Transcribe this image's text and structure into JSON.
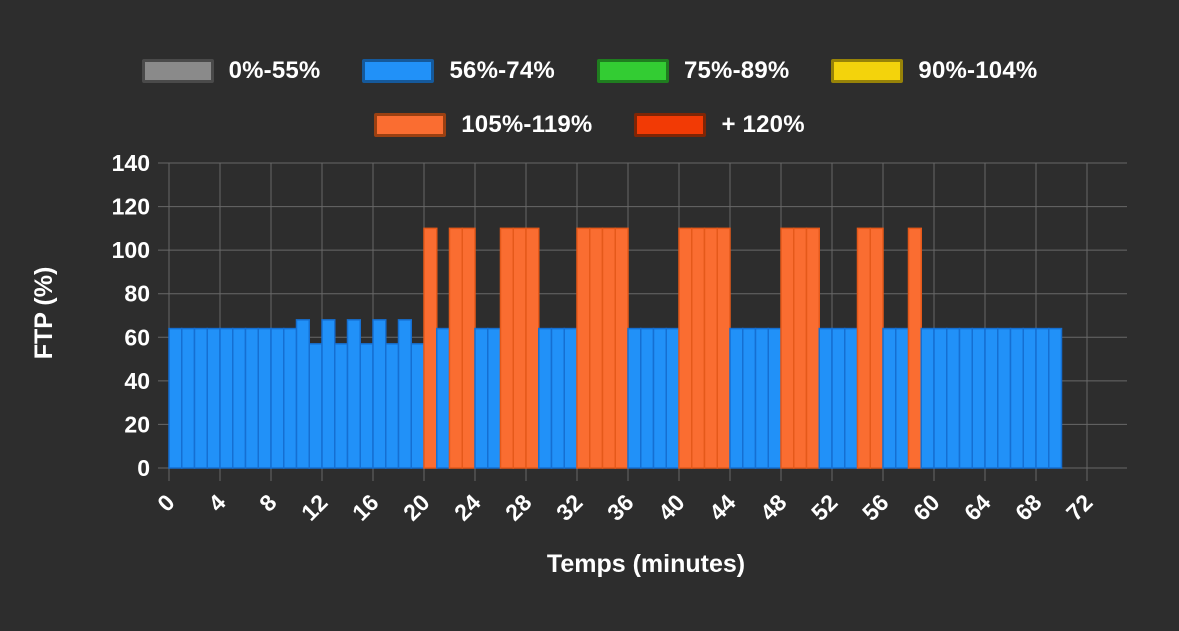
{
  "page": {
    "background": "#2d2d2d",
    "grid_color": "#686868",
    "text_color": "#ffffff"
  },
  "chart_data": {
    "type": "bar",
    "title": "",
    "xlabel": "Temps (minutes)",
    "ylabel": "FTP (%)",
    "xlim": [
      0,
      75
    ],
    "ylim": [
      0,
      140
    ],
    "x_ticks": [
      0,
      4,
      8,
      12,
      16,
      20,
      24,
      28,
      32,
      36,
      40,
      44,
      48,
      52,
      56,
      60,
      64,
      68,
      72
    ],
    "y_ticks": [
      0,
      20,
      40,
      60,
      80,
      100,
      120,
      140
    ],
    "grid": true,
    "legend_position": "top",
    "zones": [
      {
        "label": "0%-55%",
        "max": 55,
        "fill": "#8a8a8a",
        "swatch_border": "#4a4a4a",
        "bar_stroke": "#6f6f6f"
      },
      {
        "label": "56%-74%",
        "max": 74,
        "fill": "#2191f8",
        "swatch_border": "#15599b",
        "bar_stroke": "#156fd2"
      },
      {
        "label": "75%-89%",
        "max": 89,
        "fill": "#33cc33",
        "swatch_border": "#1f7d1f",
        "bar_stroke": "#28a428"
      },
      {
        "label": "90%-104%",
        "max": 104,
        "fill": "#f3d30c",
        "swatch_border": "#978308",
        "bar_stroke": "#c6ab0a"
      },
      {
        "label": "105%-119%",
        "max": 119,
        "fill": "#fa6d31",
        "swatch_border": "#9a4012",
        "bar_stroke": "#e5591a"
      },
      {
        "label": "+ 120%",
        "max": 999,
        "fill": "#f23a05",
        "swatch_border": "#7e2506",
        "bar_stroke": "#c22d03"
      }
    ],
    "legend_rows": [
      [
        0,
        1,
        2,
        3
      ],
      [
        4,
        5
      ]
    ],
    "segments": [
      {
        "start": 0,
        "end": 10,
        "ftp": 64
      },
      {
        "start": 10,
        "end": 11,
        "ftp": 68
      },
      {
        "start": 11,
        "end": 12,
        "ftp": 57
      },
      {
        "start": 12,
        "end": 13,
        "ftp": 68
      },
      {
        "start": 13,
        "end": 14,
        "ftp": 57
      },
      {
        "start": 14,
        "end": 15,
        "ftp": 68
      },
      {
        "start": 15,
        "end": 16,
        "ftp": 57
      },
      {
        "start": 16,
        "end": 17,
        "ftp": 68
      },
      {
        "start": 17,
        "end": 18,
        "ftp": 57
      },
      {
        "start": 18,
        "end": 19,
        "ftp": 68
      },
      {
        "start": 19,
        "end": 20,
        "ftp": 57
      },
      {
        "start": 20,
        "end": 21,
        "ftp": 110
      },
      {
        "start": 21,
        "end": 22,
        "ftp": 64
      },
      {
        "start": 22,
        "end": 24,
        "ftp": 110
      },
      {
        "start": 24,
        "end": 26,
        "ftp": 64
      },
      {
        "start": 26,
        "end": 29,
        "ftp": 110
      },
      {
        "start": 29,
        "end": 32,
        "ftp": 64
      },
      {
        "start": 32,
        "end": 36,
        "ftp": 110
      },
      {
        "start": 36,
        "end": 40,
        "ftp": 64
      },
      {
        "start": 40,
        "end": 44,
        "ftp": 110
      },
      {
        "start": 44,
        "end": 48,
        "ftp": 64
      },
      {
        "start": 48,
        "end": 51,
        "ftp": 110
      },
      {
        "start": 51,
        "end": 54,
        "ftp": 64
      },
      {
        "start": 54,
        "end": 56,
        "ftp": 110
      },
      {
        "start": 56,
        "end": 58,
        "ftp": 64
      },
      {
        "start": 58,
        "end": 59,
        "ftp": 110
      },
      {
        "start": 59,
        "end": 70,
        "ftp": 64
      }
    ]
  }
}
